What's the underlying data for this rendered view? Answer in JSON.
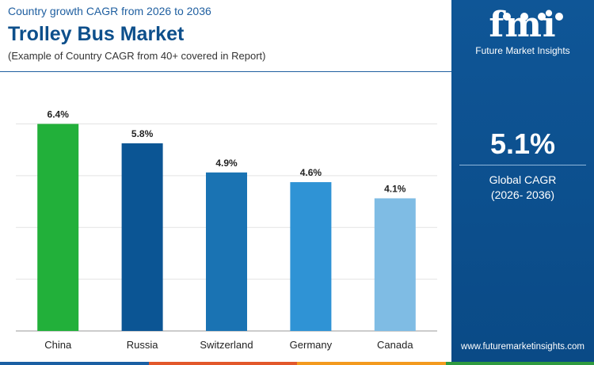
{
  "header": {
    "subtitle_top": "Country growth CAGR from 2026 to 2036",
    "title": "Trolley Bus Market",
    "note": "(Example of Country CAGR from 40+ covered in Report)"
  },
  "panel": {
    "logo_text": "fmi",
    "logo_tagline": "Future Market Insights",
    "cagr_value": "5.1%",
    "cagr_label": "Global CAGR",
    "cagr_period": "(2026- 2036)",
    "website": "www.futuremarketinsights.com"
  },
  "colors": {
    "brand_blue": "#0d4f8b",
    "panel_blue": "#0f5697",
    "strip": [
      "#1a5fa3",
      "#e2572a",
      "#f39a1e",
      "#2e9a3f"
    ]
  },
  "chart_data": {
    "type": "bar",
    "categories": [
      "China",
      "Russia",
      "Switzerland",
      "Germany",
      "Canada"
    ],
    "values": [
      6.4,
      5.8,
      4.9,
      4.6,
      4.1
    ],
    "value_labels": [
      "6.4%",
      "5.8%",
      "4.9%",
      "4.6%",
      "4.1%"
    ],
    "bar_colors": [
      "#22b03a",
      "#0b5594",
      "#1a73b3",
      "#2f93d5",
      "#7fbce4"
    ],
    "ylim": [
      0,
      7
    ],
    "grid": true,
    "legend": "none"
  }
}
